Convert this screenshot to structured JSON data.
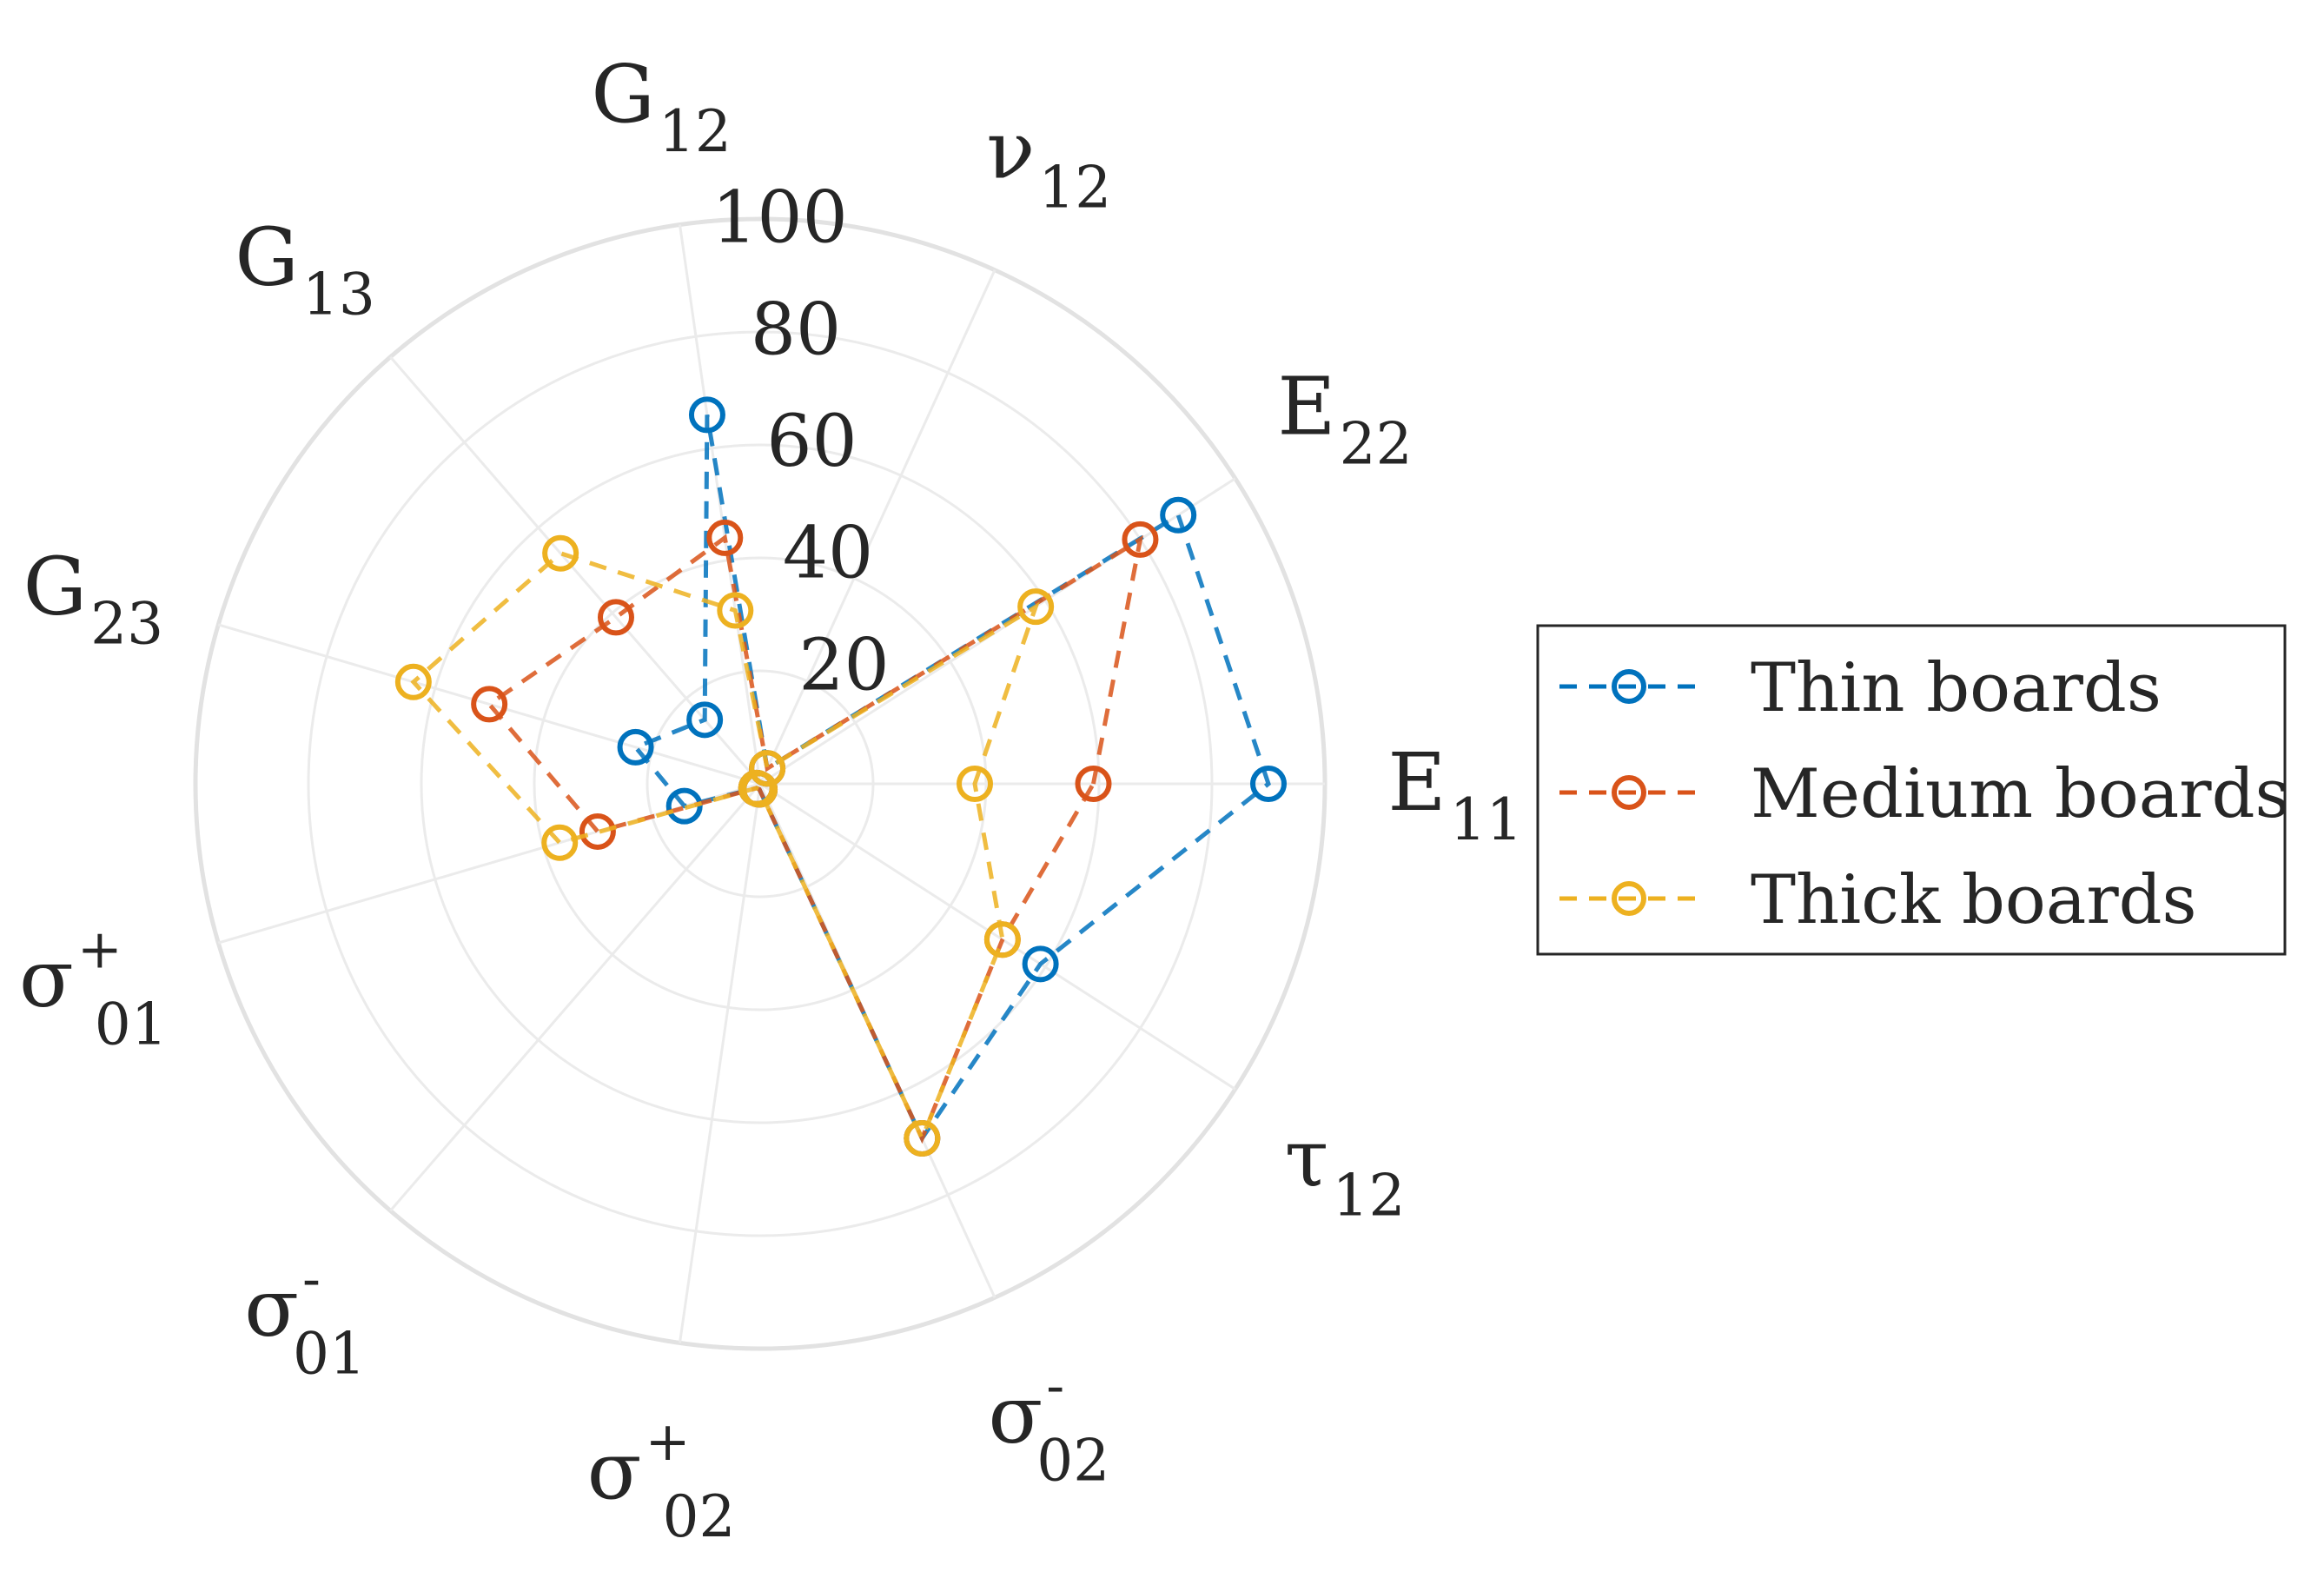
{
  "chart_data": {
    "type": "radar",
    "rlim": [
      0,
      100
    ],
    "radial_ticks": [
      "20",
      "40",
      "60",
      "80",
      "100"
    ],
    "axes": [
      {
        "base": "E",
        "sub": "11",
        "sup": ""
      },
      {
        "base": "E",
        "sub": "22",
        "sup": ""
      },
      {
        "base": "ν",
        "sub": "12",
        "sup": ""
      },
      {
        "base": "G",
        "sub": "12",
        "sup": ""
      },
      {
        "base": "G",
        "sub": "13",
        "sup": ""
      },
      {
        "base": "G",
        "sub": "23",
        "sup": ""
      },
      {
        "base": "σ",
        "sub": "01",
        "sup": "+"
      },
      {
        "base": "σ",
        "sub": "01",
        "sup": "-"
      },
      {
        "base": "σ",
        "sub": "02",
        "sup": "+"
      },
      {
        "base": "σ",
        "sub": "02",
        "sup": "-"
      },
      {
        "base": "τ",
        "sub": "12",
        "sup": ""
      }
    ],
    "grid": true,
    "legend_position": "right",
    "series": [
      {
        "name": "Thin boards",
        "color": "#0072BD",
        "values": [
          90,
          88,
          3,
          66,
          15,
          23,
          14,
          1,
          1,
          69,
          59
        ]
      },
      {
        "name": "Medium boards",
        "color": "#D95319",
        "values": [
          59,
          80,
          3,
          44,
          39,
          50,
          30,
          1,
          1,
          69,
          51
        ]
      },
      {
        "name": "Thick boards",
        "color": "#EDB120",
        "values": [
          38,
          58,
          3,
          31,
          54,
          64,
          37,
          1,
          1,
          69,
          51
        ]
      }
    ]
  }
}
